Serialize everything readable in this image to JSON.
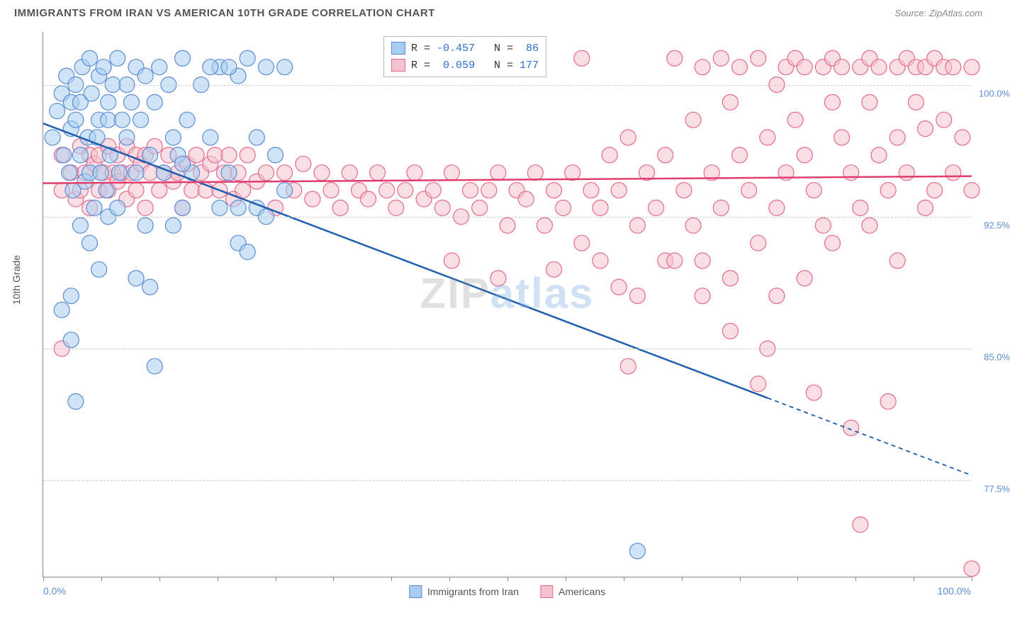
{
  "header": {
    "title": "IMMIGRANTS FROM IRAN VS AMERICAN 10TH GRADE CORRELATION CHART",
    "source": "Source: ZipAtlas.com"
  },
  "ylabel": "10th Grade",
  "watermark": {
    "part1": "ZIP",
    "part2": "atlas"
  },
  "chart": {
    "type": "scatter-correlation",
    "background_color": "#ffffff",
    "grid_color": "#cccccc",
    "axis_color": "#888888",
    "xlim": [
      0,
      100
    ],
    "ylim": [
      72,
      103
    ],
    "yticks": [
      {
        "value": 100.0,
        "label": "100.0%"
      },
      {
        "value": 92.5,
        "label": "92.5%"
      },
      {
        "value": 85.0,
        "label": "85.0%"
      },
      {
        "value": 77.5,
        "label": "77.5%"
      }
    ],
    "xticks_minor": [
      0,
      6.25,
      12.5,
      18.75,
      25,
      31.25,
      37.5,
      43.75,
      50,
      56.25,
      62.5,
      68.75,
      75,
      81.25,
      87.5,
      93.75,
      100
    ],
    "xlabel_min": "0.0%",
    "xlabel_max": "100.0%",
    "series": [
      {
        "name": "Immigrants from Iran",
        "fill": "#a9cdf0",
        "stroke": "#5b8dd6",
        "line_color": "#1f5fb0",
        "opacity": 0.55,
        "radius": 11,
        "r_value": "-0.457",
        "n_value": "86",
        "trend": {
          "x1": 0,
          "y1": 97.8,
          "x2": 78,
          "y2": 82.2,
          "x2_ext": 100,
          "y2_ext": 77.8
        },
        "points": [
          [
            1,
            97
          ],
          [
            1.5,
            98.5
          ],
          [
            2,
            99.5
          ],
          [
            2.2,
            96
          ],
          [
            2.5,
            100.5
          ],
          [
            2.8,
            95
          ],
          [
            3,
            97.5
          ],
          [
            3,
            99
          ],
          [
            3.2,
            94
          ],
          [
            3.5,
            98
          ],
          [
            3.5,
            100
          ],
          [
            4,
            96
          ],
          [
            4,
            99
          ],
          [
            4.2,
            101
          ],
          [
            4.5,
            94.5
          ],
          [
            4.8,
            97
          ],
          [
            5,
            101.5
          ],
          [
            5,
            95
          ],
          [
            5.2,
            99.5
          ],
          [
            5.5,
            93
          ],
          [
            5.8,
            97
          ],
          [
            6,
            100.5
          ],
          [
            6,
            98
          ],
          [
            6.2,
            95
          ],
          [
            6.5,
            101
          ],
          [
            6.8,
            94
          ],
          [
            7,
            98
          ],
          [
            7,
            99
          ],
          [
            7.2,
            96
          ],
          [
            7.5,
            100
          ],
          [
            8,
            101.5
          ],
          [
            8.2,
            95
          ],
          [
            8.5,
            98
          ],
          [
            9,
            100
          ],
          [
            9,
            97
          ],
          [
            9.5,
            99
          ],
          [
            10,
            101
          ],
          [
            10,
            95
          ],
          [
            10.5,
            98
          ],
          [
            11,
            100.5
          ],
          [
            11.5,
            96
          ],
          [
            12,
            99
          ],
          [
            12.5,
            101
          ],
          [
            13,
            95
          ],
          [
            13.5,
            100
          ],
          [
            14,
            97
          ],
          [
            14.5,
            96
          ],
          [
            15,
            101.5
          ],
          [
            15.5,
            98
          ],
          [
            16,
            95
          ],
          [
            17,
            100
          ],
          [
            18,
            97
          ],
          [
            19,
            101
          ],
          [
            20,
            95
          ],
          [
            21,
            100.5
          ],
          [
            22,
            101.5
          ],
          [
            23,
            97
          ],
          [
            24,
            101
          ],
          [
            25,
            96
          ],
          [
            26,
            101
          ],
          [
            2,
            87.2
          ],
          [
            3,
            85.5
          ],
          [
            3.5,
            82
          ],
          [
            4,
            92
          ],
          [
            7,
            92.5
          ],
          [
            8,
            93
          ],
          [
            10,
            89
          ],
          [
            11,
            92
          ],
          [
            11.5,
            88.5
          ],
          [
            12,
            84
          ],
          [
            15,
            93
          ],
          [
            19,
            93
          ],
          [
            21,
            93
          ],
          [
            21,
            91
          ],
          [
            22,
            90.5
          ],
          [
            23,
            93
          ],
          [
            24,
            92.5
          ],
          [
            26,
            94
          ],
          [
            15,
            95.5
          ],
          [
            14,
            92
          ],
          [
            3,
            88
          ],
          [
            5,
            91
          ],
          [
            6,
            89.5
          ],
          [
            64,
            73.5
          ],
          [
            18,
            101
          ],
          [
            20,
            101
          ]
        ]
      },
      {
        "name": "Americans",
        "fill": "#f5c2d0",
        "stroke": "#e66a8e",
        "line_color": "#e13d6d",
        "opacity": 0.55,
        "radius": 11,
        "r_value": "0.059",
        "n_value": "177",
        "trend": {
          "x1": 0,
          "y1": 94.4,
          "x2": 100,
          "y2": 94.8,
          "x2_ext": 100,
          "y2_ext": 94.8
        },
        "points": [
          [
            2,
            96
          ],
          [
            2,
            85
          ],
          [
            2,
            94
          ],
          [
            3,
            95
          ],
          [
            3.5,
            93.5
          ],
          [
            4,
            96.5
          ],
          [
            4,
            94
          ],
          [
            4.5,
            95
          ],
          [
            5,
            96
          ],
          [
            5,
            93
          ],
          [
            5.5,
            95.5
          ],
          [
            6,
            94
          ],
          [
            6,
            96
          ],
          [
            6.5,
            95
          ],
          [
            7,
            96.5
          ],
          [
            7,
            94
          ],
          [
            7.5,
            95
          ],
          [
            8,
            96
          ],
          [
            8,
            94.5
          ],
          [
            8.5,
            95
          ],
          [
            9,
            96.5
          ],
          [
            9,
            93.5
          ],
          [
            9.5,
            95
          ],
          [
            10,
            96
          ],
          [
            10,
            94
          ],
          [
            10.5,
            95.5
          ],
          [
            11,
            96
          ],
          [
            11,
            93
          ],
          [
            11.5,
            95
          ],
          [
            12,
            96.5
          ],
          [
            12.5,
            94
          ],
          [
            13,
            95
          ],
          [
            13.5,
            96
          ],
          [
            14,
            94.5
          ],
          [
            14.5,
            95
          ],
          [
            15,
            93
          ],
          [
            15.5,
            95.5
          ],
          [
            16,
            94
          ],
          [
            16.5,
            96
          ],
          [
            17,
            95
          ],
          [
            17.5,
            94
          ],
          [
            18,
            95.5
          ],
          [
            18.5,
            96
          ],
          [
            19,
            94
          ],
          [
            19.5,
            95
          ],
          [
            20,
            96
          ],
          [
            20.5,
            93.5
          ],
          [
            21,
            95
          ],
          [
            21.5,
            94
          ],
          [
            22,
            96
          ],
          [
            23,
            94.5
          ],
          [
            24,
            95
          ],
          [
            25,
            93
          ],
          [
            26,
            95
          ],
          [
            27,
            94
          ],
          [
            28,
            95.5
          ],
          [
            29,
            93.5
          ],
          [
            30,
            95
          ],
          [
            31,
            94
          ],
          [
            32,
            93
          ],
          [
            33,
            95
          ],
          [
            34,
            94
          ],
          [
            35,
            93.5
          ],
          [
            36,
            95
          ],
          [
            37,
            94
          ],
          [
            38,
            93
          ],
          [
            39,
            94
          ],
          [
            40,
            95
          ],
          [
            41,
            93.5
          ],
          [
            42,
            94
          ],
          [
            43,
            93
          ],
          [
            44,
            95
          ],
          [
            45,
            92.5
          ],
          [
            46,
            94
          ],
          [
            47,
            93
          ],
          [
            48,
            94
          ],
          [
            49,
            95
          ],
          [
            50,
            92
          ],
          [
            51,
            94
          ],
          [
            52,
            93.5
          ],
          [
            53,
            95
          ],
          [
            54,
            92
          ],
          [
            55,
            94
          ],
          [
            56,
            93
          ],
          [
            57,
            95
          ],
          [
            58,
            91
          ],
          [
            59,
            94
          ],
          [
            60,
            90
          ],
          [
            60,
            93
          ],
          [
            61,
            96
          ],
          [
            62,
            88.5
          ],
          [
            62,
            94
          ],
          [
            63,
            97
          ],
          [
            64,
            92
          ],
          [
            64,
            88
          ],
          [
            65,
            95
          ],
          [
            66,
            93
          ],
          [
            67,
            90
          ],
          [
            67,
            96
          ],
          [
            68,
            101.5
          ],
          [
            69,
            94
          ],
          [
            70,
            98
          ],
          [
            70,
            92
          ],
          [
            71,
            101
          ],
          [
            71,
            90
          ],
          [
            72,
            95
          ],
          [
            73,
            101.5
          ],
          [
            73,
            93
          ],
          [
            74,
            99
          ],
          [
            74,
            89
          ],
          [
            75,
            96
          ],
          [
            75,
            101
          ],
          [
            76,
            94
          ],
          [
            77,
            101.5
          ],
          [
            77,
            91
          ],
          [
            78,
            97
          ],
          [
            78,
            85
          ],
          [
            79,
            100
          ],
          [
            79,
            93
          ],
          [
            80,
            101
          ],
          [
            80,
            95
          ],
          [
            81,
            98
          ],
          [
            81,
            101.5
          ],
          [
            82,
            96
          ],
          [
            82,
            101
          ],
          [
            83,
            94
          ],
          [
            83,
            82.5
          ],
          [
            84,
            101
          ],
          [
            84,
            92
          ],
          [
            85,
            99
          ],
          [
            85,
            101.5
          ],
          [
            86,
            97
          ],
          [
            86,
            101
          ],
          [
            87,
            95
          ],
          [
            87,
            80.5
          ],
          [
            88,
            101
          ],
          [
            88,
            93
          ],
          [
            89,
            99
          ],
          [
            89,
            101.5
          ],
          [
            90,
            96
          ],
          [
            90,
            101
          ],
          [
            91,
            94
          ],
          [
            91,
            82
          ],
          [
            92,
            101
          ],
          [
            92,
            97
          ],
          [
            93,
            101.5
          ],
          [
            93,
            95
          ],
          [
            94,
            99
          ],
          [
            94,
            101
          ],
          [
            95,
            97.5
          ],
          [
            95,
            101
          ],
          [
            96,
            94
          ],
          [
            96,
            101.5
          ],
          [
            97,
            98
          ],
          [
            97,
            101
          ],
          [
            98,
            95
          ],
          [
            98,
            101
          ],
          [
            99,
            97
          ],
          [
            100,
            101
          ],
          [
            100,
            94
          ],
          [
            58,
            101.5
          ],
          [
            49,
            89
          ],
          [
            44,
            90
          ],
          [
            55,
            89.5
          ],
          [
            63,
            84
          ],
          [
            88,
            75
          ],
          [
            77,
            83
          ],
          [
            100,
            72.5
          ],
          [
            68,
            90
          ],
          [
            71,
            88
          ],
          [
            74,
            86
          ],
          [
            79,
            88
          ],
          [
            82,
            89
          ],
          [
            85,
            91
          ],
          [
            89,
            92
          ],
          [
            92,
            90
          ],
          [
            95,
            93
          ]
        ]
      }
    ]
  },
  "bottom_legend": [
    {
      "label": "Immigrants from Iran",
      "fill": "#a9cdf0",
      "stroke": "#5b8dd6"
    },
    {
      "label": "Americans",
      "fill": "#f5c2d0",
      "stroke": "#e66a8e"
    }
  ]
}
